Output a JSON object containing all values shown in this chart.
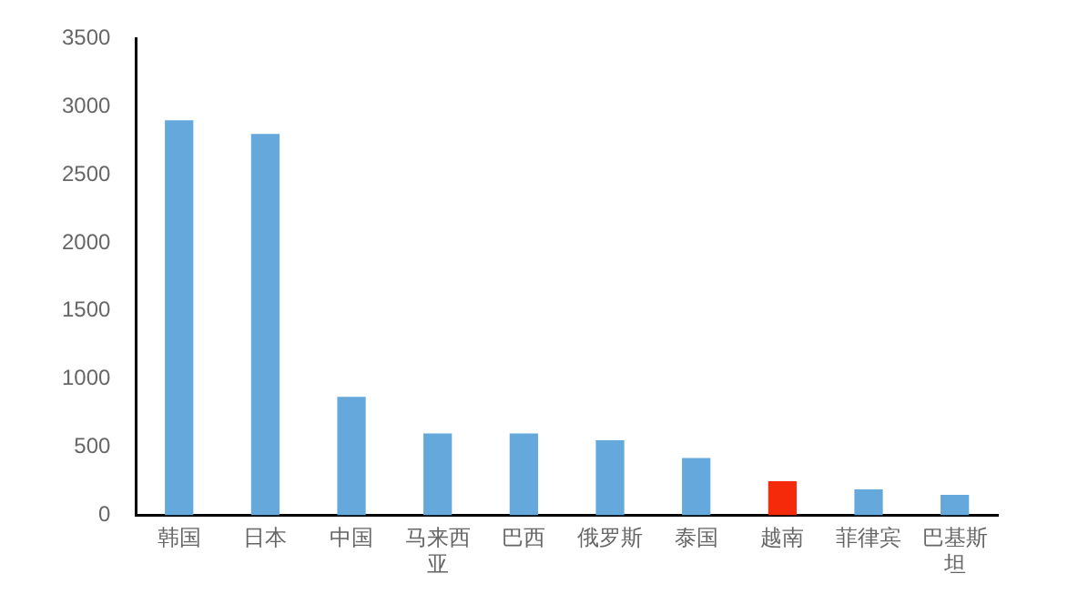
{
  "chart_data": {
    "type": "bar",
    "categories": [
      "韩国",
      "日本",
      "中国",
      "马来西亚",
      "巴西",
      "俄罗斯",
      "泰国",
      "越南",
      "菲律宾",
      "巴基斯坦"
    ],
    "values": [
      2900,
      2800,
      870,
      600,
      600,
      550,
      420,
      250,
      190,
      150
    ],
    "colors": [
      "#64a8dc",
      "#64a8dc",
      "#64a8dc",
      "#64a8dc",
      "#64a8dc",
      "#64a8dc",
      "#64a8dc",
      "#f52a0a",
      "#64a8dc",
      "#64a8dc"
    ],
    "ylim": [
      0,
      3500
    ],
    "yticks": [
      0,
      500,
      1000,
      1500,
      2000,
      2500,
      3000,
      3500
    ],
    "grid": false,
    "legend": false
  }
}
